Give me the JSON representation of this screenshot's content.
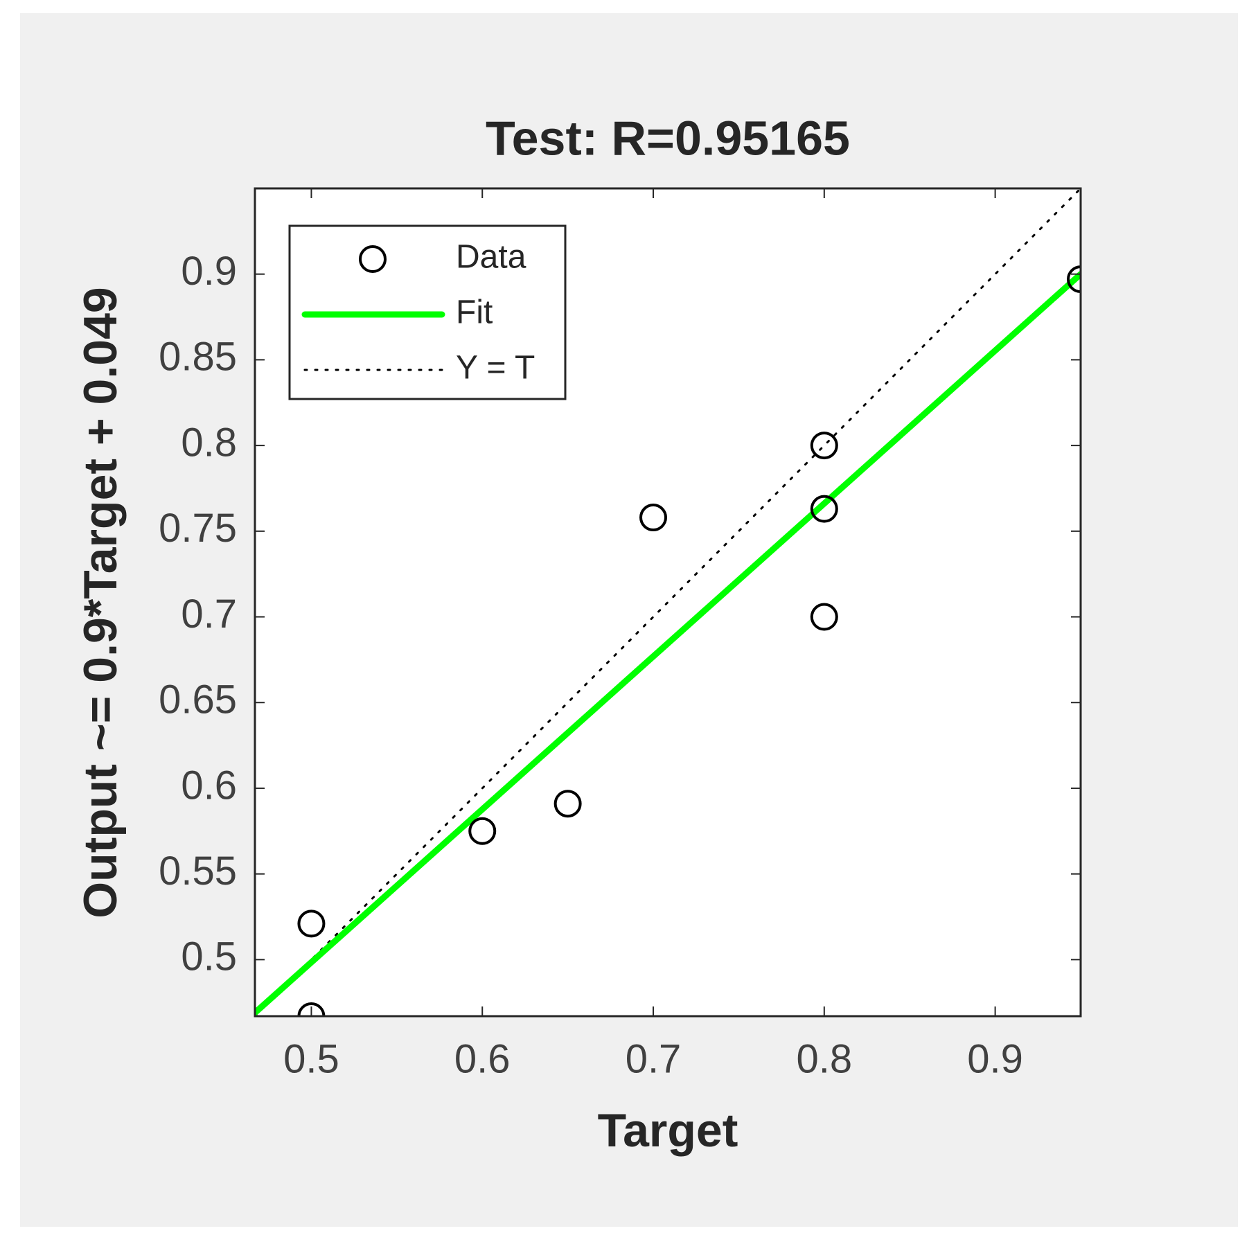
{
  "chart_data": {
    "type": "scatter",
    "title": "Test: R=0.95165",
    "xlabel": "Target",
    "ylabel": "Output ~= 0.9*Target + 0.049",
    "xlim": [
      0.467,
      0.95
    ],
    "ylim": [
      0.467,
      0.95
    ],
    "xticks": [
      0.5,
      0.6,
      0.7,
      0.8,
      0.9
    ],
    "yticks": [
      0.5,
      0.55,
      0.6,
      0.65,
      0.7,
      0.75,
      0.8,
      0.85,
      0.9
    ],
    "legend": "upper left",
    "series": [
      {
        "name": "Data",
        "color": "#000000",
        "marker": "o",
        "x": [
          0.5,
          0.5,
          0.6,
          0.65,
          0.7,
          0.8,
          0.8,
          0.8,
          0.95
        ],
        "values": [
          0.521,
          0.467,
          0.575,
          0.591,
          0.758,
          0.8,
          0.763,
          0.7,
          0.897
        ]
      },
      {
        "name": "Fit",
        "color": "#00ff00",
        "linestyle": "-",
        "x": [
          0.467,
          0.95
        ],
        "values": [
          0.469,
          0.9
        ]
      },
      {
        "name": "Y = T",
        "color": "#000000",
        "linestyle": ":",
        "x": [
          0.467,
          0.95
        ],
        "values": [
          0.467,
          0.95
        ]
      }
    ]
  }
}
